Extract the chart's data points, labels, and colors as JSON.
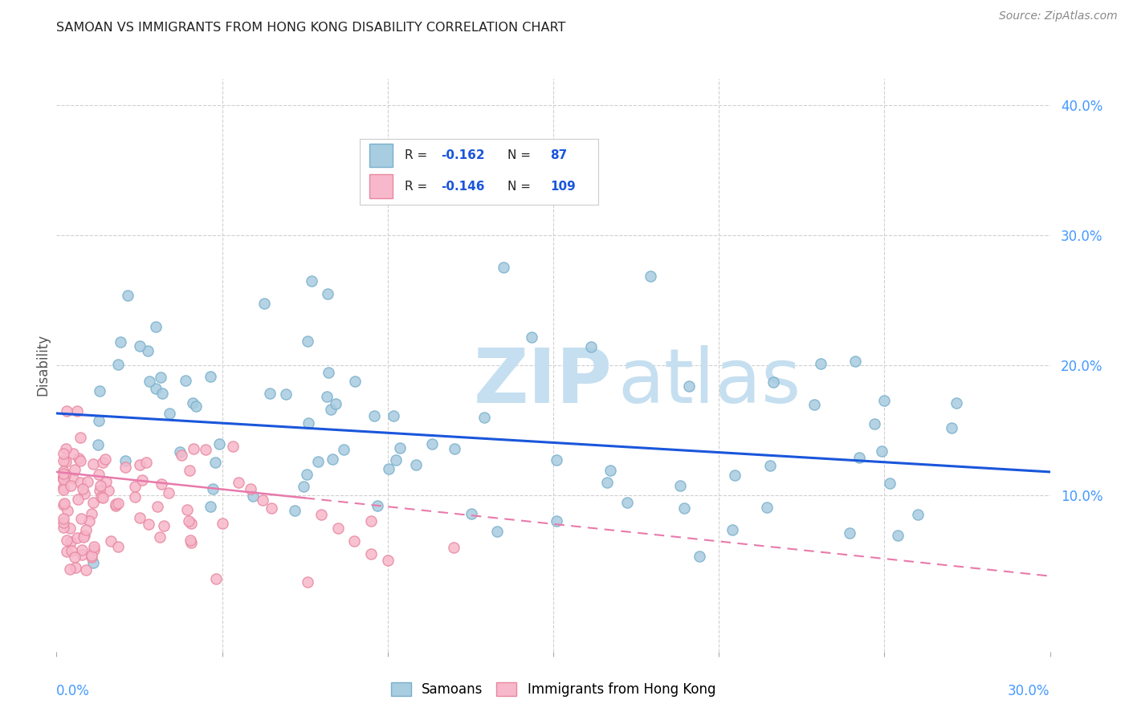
{
  "title": "SAMOAN VS IMMIGRANTS FROM HONG KONG DISABILITY CORRELATION CHART",
  "source": "Source: ZipAtlas.com",
  "ylabel": "Disability",
  "legend_label_blue": "Samoans",
  "legend_label_pink": "Immigrants from Hong Kong",
  "xlim": [
    0.0,
    0.3
  ],
  "ylim": [
    -0.02,
    0.42
  ],
  "yticks": [
    0.1,
    0.2,
    0.3,
    0.4
  ],
  "ytick_labels": [
    "10.0%",
    "20.0%",
    "30.0%",
    "40.0%"
  ],
  "blue_color": "#a8cce0",
  "blue_edge_color": "#7ab0cc",
  "pink_color": "#f7b8cb",
  "pink_edge_color": "#e8889f",
  "trend_blue_color": "#1a56db",
  "trend_pink_color": "#e87aab",
  "trend_blue_start_y": 0.163,
  "trend_blue_end_y": 0.118,
  "trend_pink_start_y": 0.118,
  "trend_pink_end_y": 0.115,
  "trend_pink_solid_end_x": 0.075,
  "trend_pink_dash_start_x": 0.075,
  "trend_pink_dash_end_x": 0.3,
  "trend_pink_dash_end_y": 0.038,
  "watermark_zip": "ZIP",
  "watermark_atlas": "atlas",
  "legend_r1": "R = -0.162",
  "legend_n1": "N =  87",
  "legend_r2": "R = -0.146",
  "legend_n2": "N = 109"
}
